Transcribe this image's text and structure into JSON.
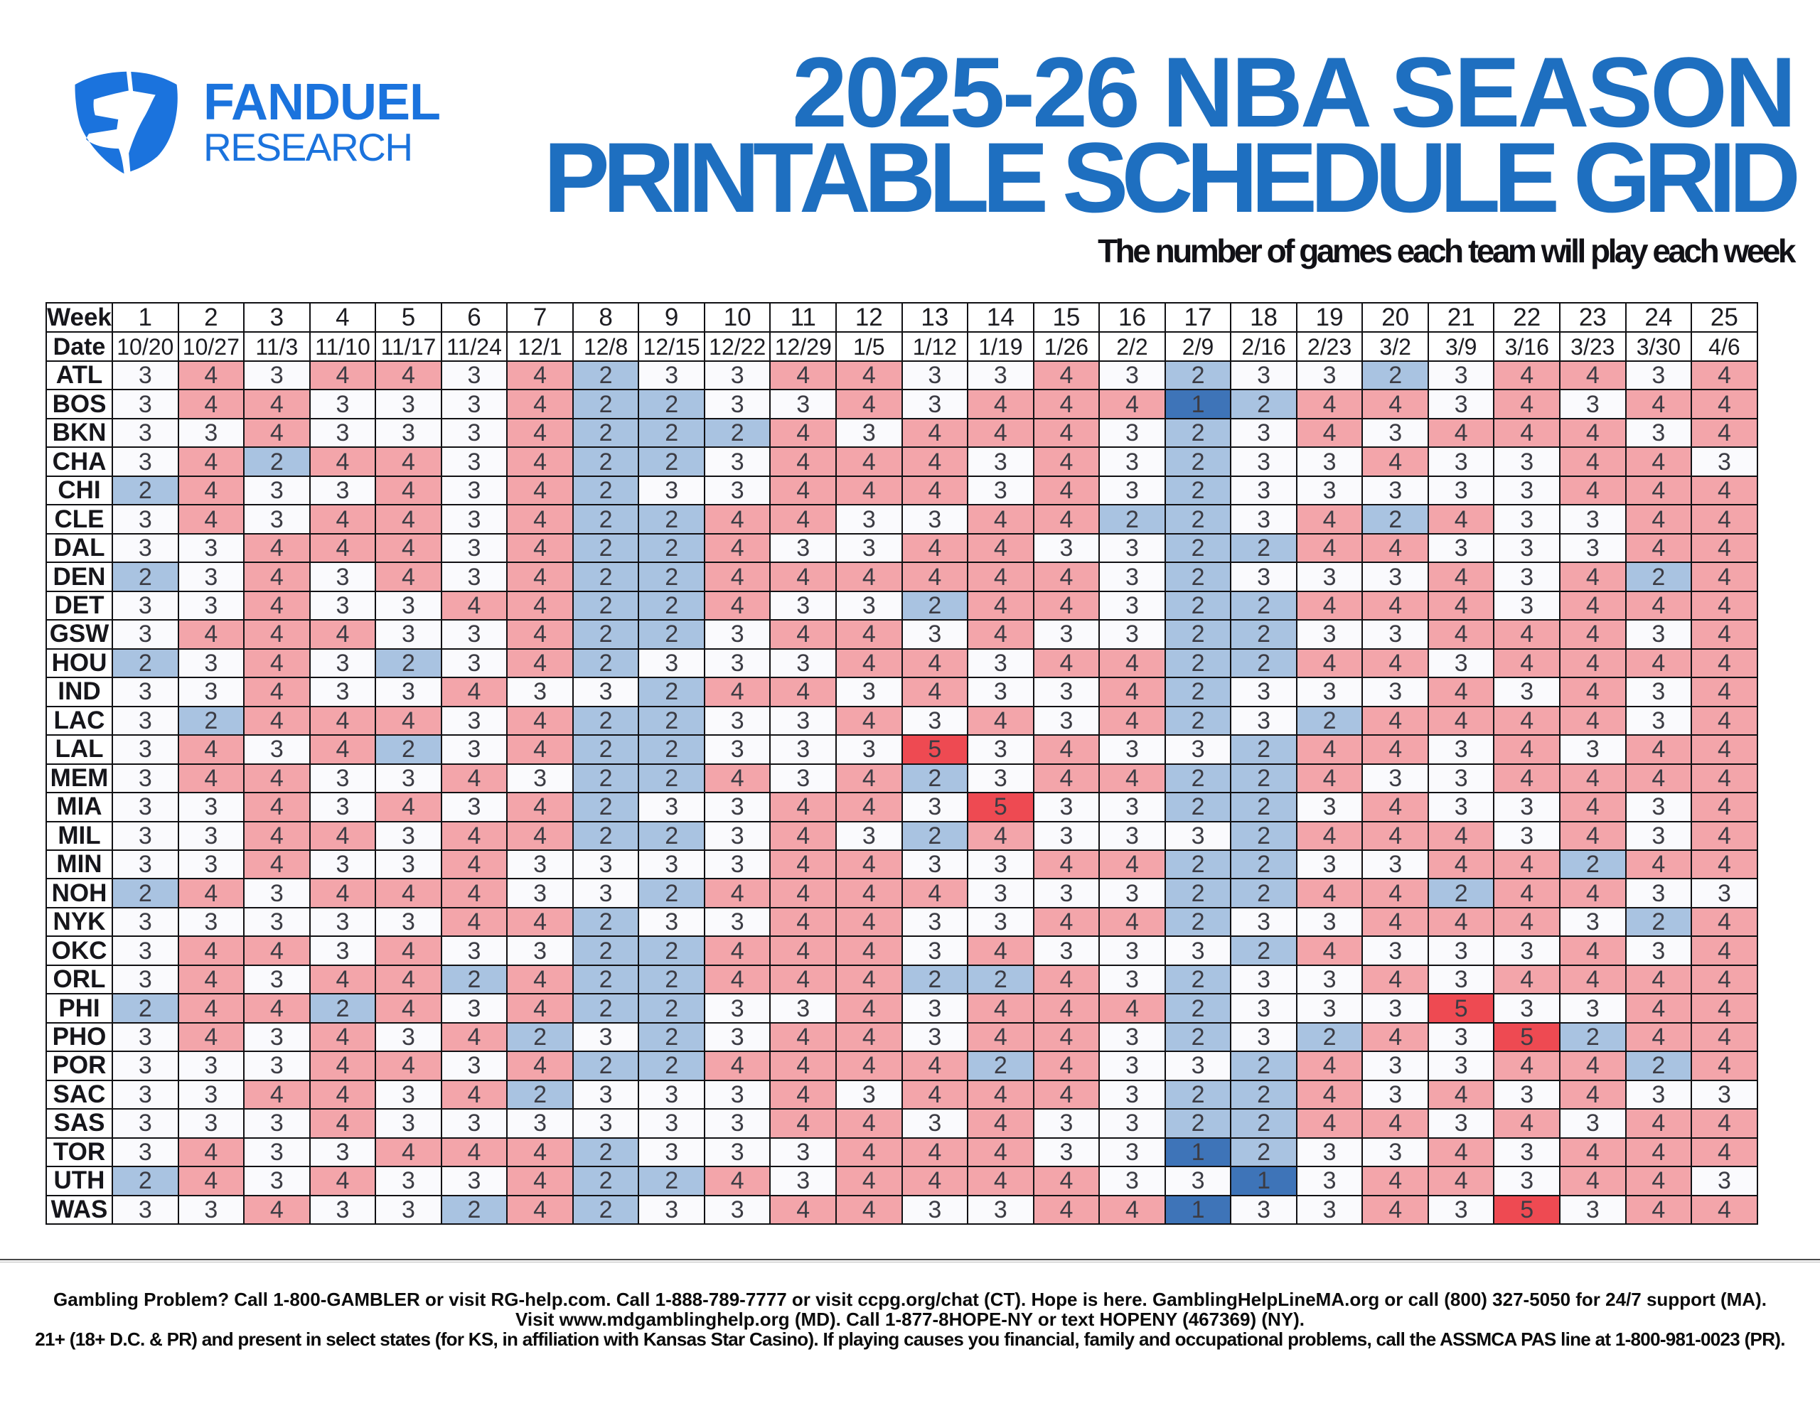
{
  "brand": {
    "icon": "fanduel-shield-icon",
    "name_line1": "FANDUEL",
    "name_line2": "RESEARCH",
    "color": "#1b73dd"
  },
  "header": {
    "title_line1": "2025-26 NBA SEASON",
    "title_line2": "PRINTABLE SCHEDULE GRID",
    "title_color": "#1e6fc0",
    "subtitle": "The number of games each team will play each week"
  },
  "chart_data": {
    "type": "heatmap",
    "title": "2025-26 NBA SEASON PRINTABLE SCHEDULE GRID",
    "subtitle": "The number of games each team will play each week",
    "corner_week_label": "Week",
    "corner_date_label": "Date",
    "weeks": [
      "1",
      "2",
      "3",
      "4",
      "5",
      "6",
      "7",
      "8",
      "9",
      "10",
      "11",
      "12",
      "13",
      "14",
      "15",
      "16",
      "17",
      "18",
      "19",
      "20",
      "21",
      "22",
      "23",
      "24",
      "25"
    ],
    "dates": [
      "10/20",
      "10/27",
      "11/3",
      "11/10",
      "11/17",
      "11/24",
      "12/1",
      "12/8",
      "12/15",
      "12/22",
      "12/29",
      "1/5",
      "1/12",
      "1/19",
      "1/26",
      "2/2",
      "2/9",
      "2/16",
      "2/23",
      "3/2",
      "3/9",
      "3/16",
      "3/23",
      "3/30",
      "4/6"
    ],
    "teams": [
      "ATL",
      "BOS",
      "BKN",
      "CHA",
      "CHI",
      "CLE",
      "DAL",
      "DEN",
      "DET",
      "GSW",
      "HOU",
      "IND",
      "LAC",
      "LAL",
      "MEM",
      "MIA",
      "MIL",
      "MIN",
      "NOH",
      "NYK",
      "OKC",
      "ORL",
      "PHI",
      "PHO",
      "POR",
      "SAC",
      "SAS",
      "TOR",
      "UTH",
      "WAS"
    ],
    "values": [
      [
        3,
        4,
        3,
        4,
        4,
        3,
        4,
        2,
        3,
        3,
        4,
        4,
        3,
        3,
        4,
        3,
        2,
        3,
        3,
        2,
        3,
        4,
        4,
        3,
        4
      ],
      [
        3,
        4,
        4,
        3,
        3,
        3,
        4,
        2,
        2,
        3,
        3,
        4,
        3,
        4,
        4,
        4,
        1,
        2,
        4,
        4,
        3,
        4,
        3,
        4,
        4
      ],
      [
        3,
        3,
        4,
        3,
        3,
        3,
        4,
        2,
        2,
        2,
        4,
        3,
        4,
        4,
        4,
        3,
        2,
        3,
        4,
        3,
        4,
        4,
        4,
        3,
        4
      ],
      [
        3,
        4,
        2,
        4,
        4,
        3,
        4,
        2,
        2,
        3,
        4,
        4,
        4,
        3,
        4,
        3,
        2,
        3,
        3,
        4,
        3,
        3,
        4,
        4,
        3
      ],
      [
        2,
        4,
        3,
        3,
        4,
        3,
        4,
        2,
        3,
        3,
        4,
        4,
        4,
        3,
        4,
        3,
        2,
        3,
        3,
        3,
        3,
        3,
        4,
        4,
        4
      ],
      [
        3,
        4,
        3,
        4,
        4,
        3,
        4,
        2,
        2,
        4,
        4,
        3,
        3,
        4,
        4,
        2,
        2,
        3,
        4,
        2,
        4,
        3,
        3,
        4,
        4
      ],
      [
        3,
        3,
        4,
        4,
        4,
        3,
        4,
        2,
        2,
        4,
        3,
        3,
        4,
        4,
        3,
        3,
        2,
        2,
        4,
        4,
        3,
        3,
        3,
        4,
        4
      ],
      [
        2,
        3,
        4,
        3,
        4,
        3,
        4,
        2,
        2,
        4,
        4,
        4,
        4,
        4,
        4,
        3,
        2,
        3,
        3,
        3,
        4,
        3,
        4,
        2,
        4
      ],
      [
        3,
        3,
        4,
        3,
        3,
        4,
        4,
        2,
        2,
        4,
        3,
        3,
        2,
        4,
        4,
        3,
        2,
        2,
        4,
        4,
        4,
        3,
        4,
        4,
        4
      ],
      [
        3,
        4,
        4,
        4,
        3,
        3,
        4,
        2,
        2,
        3,
        4,
        4,
        3,
        4,
        3,
        3,
        2,
        2,
        3,
        3,
        4,
        4,
        4,
        3,
        4
      ],
      [
        2,
        3,
        4,
        3,
        2,
        3,
        4,
        2,
        3,
        3,
        3,
        4,
        4,
        3,
        4,
        4,
        2,
        2,
        4,
        4,
        3,
        4,
        4,
        4,
        4
      ],
      [
        3,
        3,
        4,
        3,
        3,
        4,
        3,
        3,
        2,
        4,
        4,
        3,
        4,
        3,
        3,
        4,
        2,
        3,
        3,
        3,
        4,
        3,
        4,
        3,
        4
      ],
      [
        3,
        2,
        4,
        4,
        4,
        3,
        4,
        2,
        2,
        3,
        3,
        4,
        3,
        4,
        3,
        4,
        2,
        3,
        2,
        4,
        4,
        4,
        4,
        3,
        4
      ],
      [
        3,
        4,
        3,
        4,
        2,
        3,
        4,
        2,
        2,
        3,
        3,
        3,
        5,
        3,
        4,
        3,
        3,
        2,
        4,
        4,
        3,
        4,
        3,
        4,
        4
      ],
      [
        3,
        4,
        4,
        3,
        3,
        4,
        3,
        2,
        2,
        4,
        3,
        4,
        2,
        3,
        4,
        4,
        2,
        2,
        4,
        3,
        3,
        4,
        4,
        4,
        4
      ],
      [
        3,
        3,
        4,
        3,
        4,
        3,
        4,
        2,
        3,
        3,
        4,
        4,
        3,
        5,
        3,
        3,
        2,
        2,
        3,
        4,
        3,
        3,
        4,
        3,
        4
      ],
      [
        3,
        3,
        4,
        4,
        3,
        4,
        4,
        2,
        2,
        3,
        4,
        3,
        2,
        4,
        3,
        3,
        3,
        2,
        4,
        4,
        4,
        3,
        4,
        3,
        4
      ],
      [
        3,
        3,
        4,
        3,
        3,
        4,
        3,
        3,
        3,
        3,
        4,
        4,
        3,
        3,
        4,
        4,
        2,
        2,
        3,
        3,
        4,
        4,
        2,
        4,
        4
      ],
      [
        2,
        4,
        3,
        4,
        4,
        4,
        3,
        3,
        2,
        4,
        4,
        4,
        4,
        3,
        3,
        3,
        2,
        2,
        4,
        4,
        2,
        4,
        4,
        3,
        3
      ],
      [
        3,
        3,
        3,
        3,
        3,
        4,
        4,
        2,
        3,
        3,
        4,
        4,
        3,
        3,
        4,
        4,
        2,
        3,
        3,
        4,
        4,
        4,
        3,
        2,
        4
      ],
      [
        3,
        4,
        4,
        3,
        4,
        3,
        3,
        2,
        2,
        4,
        4,
        4,
        3,
        4,
        3,
        3,
        3,
        2,
        4,
        3,
        3,
        3,
        4,
        3,
        4
      ],
      [
        3,
        4,
        3,
        4,
        4,
        2,
        4,
        2,
        2,
        4,
        4,
        4,
        2,
        2,
        4,
        3,
        2,
        3,
        3,
        4,
        3,
        4,
        4,
        4,
        4
      ],
      [
        2,
        4,
        4,
        2,
        4,
        3,
        4,
        2,
        2,
        3,
        3,
        4,
        3,
        4,
        4,
        4,
        2,
        3,
        3,
        3,
        5,
        3,
        3,
        4,
        4
      ],
      [
        3,
        4,
        3,
        4,
        3,
        4,
        2,
        3,
        2,
        3,
        4,
        4,
        3,
        4,
        4,
        3,
        2,
        3,
        2,
        4,
        3,
        5,
        2,
        4,
        4
      ],
      [
        3,
        3,
        3,
        4,
        4,
        3,
        4,
        2,
        2,
        4,
        4,
        4,
        4,
        2,
        4,
        3,
        3,
        2,
        4,
        3,
        3,
        4,
        4,
        2,
        4
      ],
      [
        3,
        3,
        4,
        4,
        3,
        4,
        2,
        3,
        3,
        3,
        4,
        3,
        4,
        4,
        4,
        3,
        2,
        2,
        4,
        3,
        4,
        3,
        4,
        3,
        3
      ],
      [
        3,
        3,
        3,
        4,
        3,
        3,
        3,
        3,
        3,
        3,
        4,
        4,
        3,
        4,
        3,
        3,
        2,
        2,
        4,
        4,
        3,
        4,
        3,
        4,
        4
      ],
      [
        3,
        4,
        3,
        3,
        4,
        4,
        4,
        2,
        3,
        3,
        3,
        4,
        4,
        4,
        3,
        3,
        1,
        2,
        3,
        3,
        4,
        3,
        4,
        4,
        4
      ],
      [
        2,
        4,
        3,
        4,
        3,
        3,
        4,
        2,
        2,
        4,
        3,
        4,
        4,
        4,
        4,
        3,
        3,
        1,
        3,
        4,
        4,
        3,
        4,
        4,
        3
      ],
      [
        3,
        3,
        4,
        3,
        3,
        2,
        4,
        2,
        3,
        3,
        4,
        4,
        3,
        3,
        4,
        4,
        1,
        3,
        3,
        4,
        3,
        5,
        3,
        4,
        4
      ]
    ],
    "value_colors": {
      "1": "#3e74b8",
      "2": "#a9c3e1",
      "3": "#fafafd",
      "4": "#f3a5aa",
      "5": "#ee4a52"
    },
    "legend_note": "cells colored by games per week: 1 dark blue, 2 light blue, 3 white, 4 pink, 5 red"
  },
  "footer": {
    "lines": [
      "Gambling Problem? Call 1-800-GAMBLER or visit RG-help.com. Call 1-888-789-7777 or visit ccpg.org/chat (CT). Hope is here. GamblingHelpLineMA.org or call (800) 327-5050 for 24/7 support (MA).",
      "Visit www.mdgamblinghelp.org (MD). Call 1-877-8HOPE-NY or text HOPENY (467369) (NY).",
      "21+ (18+ D.C. & PR) and present in select states (for KS, in affiliation with Kansas Star Casino). If playing causes you financial, family and occupational problems, call the ASSMCA PAS line at 1-800-981-0023 (PR)."
    ]
  }
}
